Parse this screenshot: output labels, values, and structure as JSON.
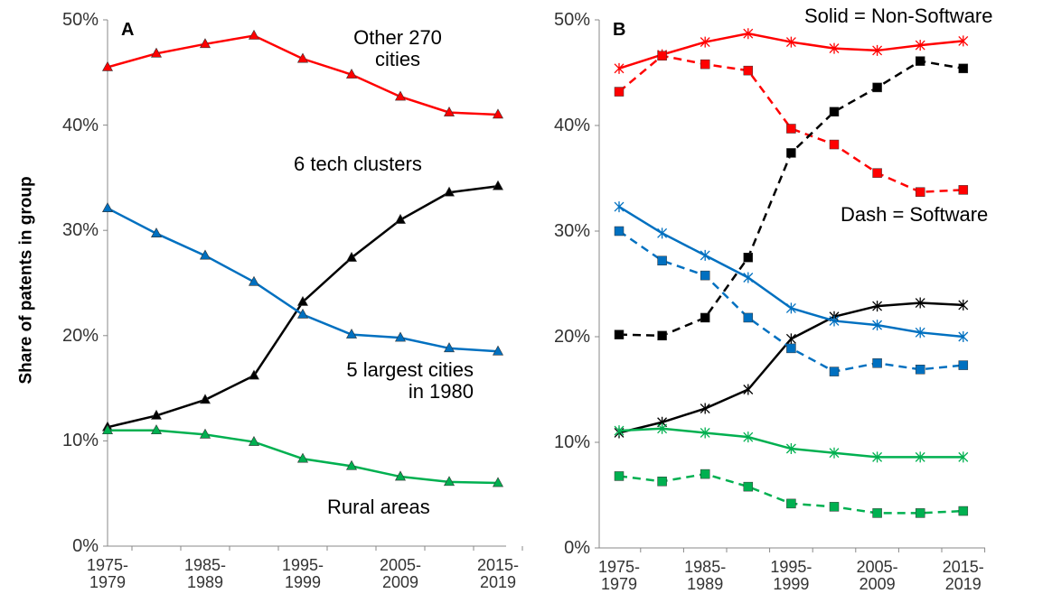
{
  "chart_data": [
    {
      "type": "line",
      "title": "A",
      "ylabel": "Share of patents in group",
      "categories": [
        "1975-\n1979",
        null,
        "1985-\n1989",
        null,
        "1995-\n1999",
        null,
        "2005-\n2009",
        null,
        "2015-\n2019"
      ],
      "ylim": [
        0,
        50
      ],
      "yticks": [
        {
          "value": 0,
          "label": "0%"
        },
        {
          "value": 10,
          "label": "10%"
        },
        {
          "value": 20,
          "label": "20%"
        },
        {
          "value": 30,
          "label": "30%"
        },
        {
          "value": 40,
          "label": "40%"
        },
        {
          "value": 50,
          "label": "50%"
        }
      ],
      "series": [
        {
          "name": "Other 270\ncities",
          "color": "#ff0000",
          "marker": "triangle",
          "values": [
            45.5,
            46.8,
            47.7,
            48.5,
            46.3,
            44.8,
            42.7,
            41.2,
            41.0
          ]
        },
        {
          "name": "6 tech clusters",
          "color": "#000000",
          "marker": "triangle",
          "values": [
            11.3,
            12.4,
            13.9,
            16.2,
            23.2,
            27.4,
            31.0,
            33.6,
            34.2
          ]
        },
        {
          "name": "5 largest cities\nin 1980",
          "color": "#0070c0",
          "marker": "triangle",
          "values": [
            32.1,
            29.7,
            27.6,
            25.1,
            22.0,
            20.1,
            19.8,
            18.8,
            18.5
          ]
        },
        {
          "name": "Rural areas",
          "color": "#00b050",
          "marker": "triangle",
          "values": [
            11.0,
            11.0,
            10.6,
            9.9,
            8.3,
            7.6,
            6.6,
            6.1,
            6.0
          ]
        }
      ]
    },
    {
      "type": "line",
      "title": "B",
      "categories": [
        "1975-\n1979",
        null,
        "1985-\n1989",
        null,
        "1995-\n1999",
        null,
        "2005-\n2009",
        null,
        "2015-\n2019"
      ],
      "ylim": [
        0,
        50
      ],
      "yticks": [
        {
          "value": 0,
          "label": "0%"
        },
        {
          "value": 10,
          "label": "10%"
        },
        {
          "value": 20,
          "label": "20%"
        },
        {
          "value": 30,
          "label": "30%"
        },
        {
          "value": 40,
          "label": "40%"
        },
        {
          "value": 50,
          "label": "50%"
        }
      ],
      "annotations": [
        "Solid = Non-Software",
        "Dash = Software"
      ],
      "series": [
        {
          "color": "#ff0000",
          "marker": "asterisk",
          "dash": false,
          "values": [
            45.4,
            46.7,
            47.9,
            48.7,
            47.9,
            47.3,
            47.1,
            47.6,
            48.0
          ]
        },
        {
          "color": "#ff0000",
          "marker": "square",
          "dash": true,
          "values": [
            43.2,
            46.6,
            45.8,
            45.2,
            39.7,
            38.2,
            35.5,
            33.7,
            33.9
          ]
        },
        {
          "color": "#000000",
          "marker": "square",
          "dash": true,
          "values": [
            20.2,
            20.1,
            21.8,
            27.5,
            37.4,
            41.3,
            43.6,
            46.1,
            45.4
          ]
        },
        {
          "color": "#000000",
          "marker": "asterisk",
          "dash": false,
          "values": [
            10.9,
            11.9,
            13.2,
            15.0,
            19.8,
            21.9,
            22.9,
            23.2,
            23.0
          ]
        },
        {
          "color": "#0070c0",
          "marker": "asterisk",
          "dash": false,
          "values": [
            32.3,
            29.8,
            27.7,
            25.6,
            22.7,
            21.5,
            21.1,
            20.4,
            20.0
          ]
        },
        {
          "color": "#0070c0",
          "marker": "square",
          "dash": true,
          "values": [
            30.0,
            27.2,
            25.8,
            21.8,
            18.9,
            16.7,
            17.5,
            16.9,
            17.3
          ]
        },
        {
          "color": "#00b050",
          "marker": "asterisk",
          "dash": false,
          "values": [
            11.1,
            11.3,
            10.9,
            10.5,
            9.4,
            9.0,
            8.6,
            8.6,
            8.6
          ]
        },
        {
          "color": "#00b050",
          "marker": "square",
          "dash": true,
          "values": [
            6.8,
            6.3,
            7.0,
            5.8,
            4.2,
            3.9,
            3.3,
            3.3,
            3.5
          ]
        }
      ]
    }
  ]
}
